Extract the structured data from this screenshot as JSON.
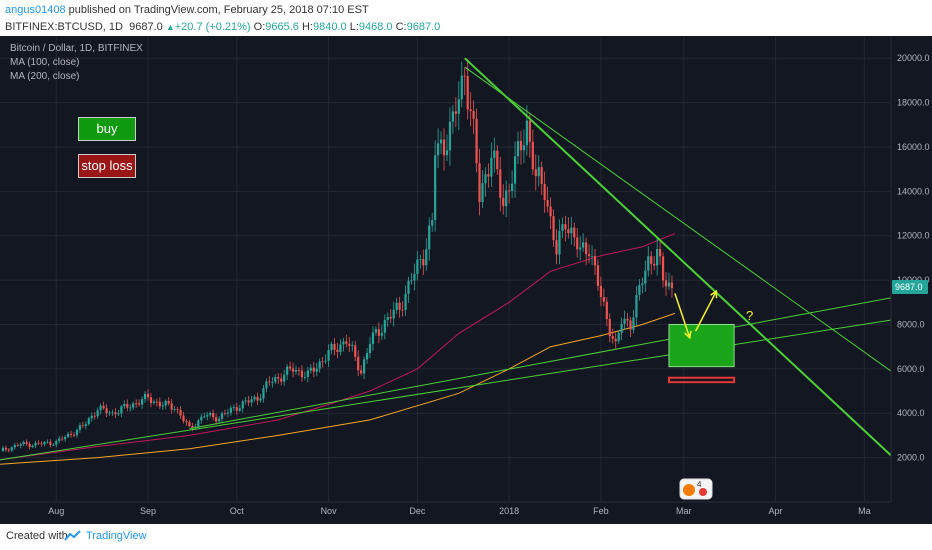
{
  "header": {
    "author": "angus01408",
    "published_text": " published on TradingView.com, February 25, 2018 07:10 EST",
    "symbol": "BITFINEX:BTCUSD, 1D",
    "last": "9687.0",
    "change": "+20.7 (+0.21%)",
    "o_label": "O:",
    "o_value": "9665.6",
    "h_label": "H:",
    "h_value": "9840.0",
    "l_label": "L:",
    "l_value": "9468.0",
    "c_label": "C:",
    "c_value": "9687.0"
  },
  "legend": {
    "title": "Bitcoin / Dollar, 1D, BITFINEX",
    "ma100": "MA (100, close)",
    "ma200": "MA (200, close)"
  },
  "annotations": {
    "buy": "buy",
    "stop_loss": "stop loss",
    "question": "?",
    "price_tag": "9687.0",
    "badge_count": "4"
  },
  "footer": {
    "created_with": "Created with",
    "brand": "TradingView"
  },
  "colors": {
    "background": "#131722",
    "grid": "#242733",
    "up_candle": "#26a69a",
    "down_candle": "#ef5350",
    "ma100": "#c2185b",
    "ma200": "#f5a623",
    "trendline": "#4cd137",
    "buy_zone": "#1aa51a",
    "stop_loss_zone": "#e53935",
    "arrow": "#f5f52a",
    "axis_text": "#b2b5be"
  },
  "chart_data": {
    "type": "candlestick",
    "title": "Bitcoin / Dollar, 1D, BITFINEX",
    "ylim": [
      0,
      21000
    ],
    "yticks": [
      2000,
      4000,
      6000,
      8000,
      10000,
      12000,
      14000,
      16000,
      18000,
      20000
    ],
    "ytick_labels": [
      "2000.0",
      "4000.0",
      "6000.0",
      "8000.0",
      "10000.0",
      "12000.0",
      "14000.0",
      "16000.0",
      "18000.0",
      "20000.0"
    ],
    "x_start": "2017-07-13",
    "x_end": "2018-05-10",
    "xticks": [
      {
        "date": "2017-08-01",
        "label": "Aug"
      },
      {
        "date": "2017-09-01",
        "label": "Sep"
      },
      {
        "date": "2017-10-01",
        "label": "Oct"
      },
      {
        "date": "2017-11-01",
        "label": "Nov"
      },
      {
        "date": "2017-12-01",
        "label": "Dec"
      },
      {
        "date": "2018-01-01",
        "label": "2018"
      },
      {
        "date": "2018-02-01",
        "label": "Feb"
      },
      {
        "date": "2018-03-01",
        "label": "Mar"
      },
      {
        "date": "2018-04-01",
        "label": "Apr"
      },
      {
        "date": "2018-05-01",
        "label": "Ma"
      }
    ],
    "close_path": [
      [
        "2017-07-13",
        2300
      ],
      [
        "2017-07-20",
        2600
      ],
      [
        "2017-07-25",
        2600
      ],
      [
        "2017-08-01",
        2700
      ],
      [
        "2017-08-05",
        3000
      ],
      [
        "2017-08-10",
        3400
      ],
      [
        "2017-08-15",
        4200
      ],
      [
        "2017-08-20",
        4000
      ],
      [
        "2017-08-25",
        4300
      ],
      [
        "2017-09-01",
        4700
      ],
      [
        "2017-09-05",
        4400
      ],
      [
        "2017-09-10",
        4300
      ],
      [
        "2017-09-15",
        3300
      ],
      [
        "2017-09-20",
        3900
      ],
      [
        "2017-09-25",
        3800
      ],
      [
        "2017-10-01",
        4300
      ],
      [
        "2017-10-08",
        4700
      ],
      [
        "2017-10-12",
        5400
      ],
      [
        "2017-10-15",
        5600
      ],
      [
        "2017-10-20",
        6000
      ],
      [
        "2017-10-25",
        5700
      ],
      [
        "2017-11-01",
        6700
      ],
      [
        "2017-11-07",
        7300
      ],
      [
        "2017-11-12",
        5900
      ],
      [
        "2017-11-15",
        7200
      ],
      [
        "2017-11-20",
        8100
      ],
      [
        "2017-11-25",
        8800
      ],
      [
        "2017-11-29",
        10000
      ],
      [
        "2017-12-03",
        11200
      ],
      [
        "2017-12-06",
        12500
      ],
      [
        "2017-12-07",
        15800
      ],
      [
        "2017-12-10",
        16200
      ],
      [
        "2017-12-13",
        17000
      ],
      [
        "2017-12-17",
        19500
      ],
      [
        "2017-12-20",
        16500
      ],
      [
        "2017-12-22",
        13800
      ],
      [
        "2017-12-26",
        15700
      ],
      [
        "2017-12-30",
        13500
      ],
      [
        "2018-01-03",
        15100
      ],
      [
        "2018-01-07",
        17100
      ],
      [
        "2018-01-10",
        14500
      ],
      [
        "2018-01-13",
        14200
      ],
      [
        "2018-01-17",
        11200
      ],
      [
        "2018-01-20",
        12800
      ],
      [
        "2018-01-25",
        11200
      ],
      [
        "2018-01-28",
        11600
      ],
      [
        "2018-02-01",
        9200
      ],
      [
        "2018-02-03",
        8300
      ],
      [
        "2018-02-06",
        7000
      ],
      [
        "2018-02-08",
        8100
      ],
      [
        "2018-02-11",
        8100
      ],
      [
        "2018-02-14",
        9500
      ],
      [
        "2018-02-17",
        10900
      ],
      [
        "2018-02-20",
        11200
      ],
      [
        "2018-02-22",
        10000
      ],
      [
        "2018-02-25",
        9687
      ]
    ],
    "ma100": [
      [
        "2017-07-13",
        1900
      ],
      [
        "2017-08-15",
        2500
      ],
      [
        "2017-09-15",
        3000
      ],
      [
        "2017-10-15",
        3700
      ],
      [
        "2017-11-01",
        4400
      ],
      [
        "2017-11-15",
        5000
      ],
      [
        "2017-12-01",
        6000
      ],
      [
        "2017-12-15",
        7600
      ],
      [
        "2018-01-01",
        9000
      ],
      [
        "2018-01-15",
        10400
      ],
      [
        "2018-02-01",
        11100
      ],
      [
        "2018-02-15",
        11500
      ],
      [
        "2018-02-26",
        12100
      ]
    ],
    "ma200": [
      [
        "2017-07-13",
        1700
      ],
      [
        "2017-08-15",
        2000
      ],
      [
        "2017-09-15",
        2400
      ],
      [
        "2017-10-15",
        3000
      ],
      [
        "2017-11-15",
        3700
      ],
      [
        "2017-12-15",
        4900
      ],
      [
        "2018-01-01",
        6000
      ],
      [
        "2018-01-15",
        7000
      ],
      [
        "2018-02-01",
        7500
      ],
      [
        "2018-02-15",
        8000
      ],
      [
        "2018-02-26",
        8500
      ]
    ],
    "trendlines": [
      {
        "from": [
          "2017-12-17",
          20000
        ],
        "to": [
          "2018-05-10",
          2100
        ],
        "width": 2
      },
      {
        "from": [
          "2017-12-17",
          19600
        ],
        "to": [
          "2018-05-10",
          5900
        ],
        "width": 1
      },
      {
        "from": [
          "2017-07-13",
          1900
        ],
        "to": [
          "2018-05-10",
          8200
        ],
        "width": 1
      },
      {
        "from": [
          "2017-09-15",
          3300
        ],
        "to": [
          "2018-05-10",
          9200
        ],
        "width": 1
      }
    ],
    "zones": [
      {
        "name": "buy-zone",
        "from": "2018-02-24",
        "to": "2018-03-18",
        "y1": 6100,
        "y2": 8000
      },
      {
        "name": "stop-loss-zone",
        "from": "2018-02-24",
        "to": "2018-03-18",
        "y1": 5400,
        "y2": 5600
      }
    ],
    "arrows": [
      {
        "from": [
          "2018-02-26",
          9400
        ],
        "to": [
          "2018-03-03",
          7400
        ]
      },
      {
        "from": [
          "2018-03-05",
          7700
        ],
        "to": [
          "2018-03-12",
          9500
        ]
      }
    ],
    "question_mark": [
      "2018-03-22",
      8200
    ],
    "last_price": 9687.0
  }
}
